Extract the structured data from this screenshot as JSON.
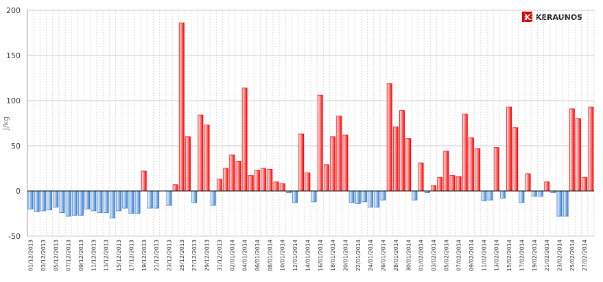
{
  "chart_data": {
    "type": "bar",
    "y_label": "J/kg",
    "logo": "KERAUNOS",
    "categories": [
      "01/12/2013",
      null,
      "03/12/2013",
      null,
      "05/12/2013",
      null,
      "07/12/2013",
      null,
      "09/12/2013",
      null,
      "11/12/2013",
      null,
      "13/12/2013",
      null,
      "15/12/2013",
      null,
      "17/12/2013",
      null,
      "19/12/2013",
      null,
      "21/12/2013",
      null,
      "23/12/2013",
      null,
      "25/12/2013",
      null,
      "27/12/2013",
      null,
      "29/12/2013",
      null,
      "31/12/2013",
      null,
      "02/01/2014",
      null,
      "04/01/2014",
      null,
      "06/01/2014",
      null,
      "08/01/2014",
      null,
      "10/01/2014",
      null,
      "12/01/2014",
      null,
      "14/01/2014",
      null,
      "16/01/2014",
      null,
      "18/01/2014",
      null,
      "20/01/2014",
      null,
      "22/01/2014",
      null,
      "24/01/2014",
      null,
      "26/01/2014",
      null,
      "28/01/2014",
      null,
      "30/01/2014",
      null,
      "01/02/2014",
      null,
      "03/02/2014",
      null,
      "05/02/2014",
      null,
      "07/02/2014",
      null,
      "09/02/2014",
      null,
      "11/02/2014",
      null,
      "13/02/2014",
      null,
      "15/02/2014",
      null,
      "17/02/2014",
      null,
      "19/02/2014",
      null,
      "21/02/2014",
      null,
      "23/02/2014",
      null,
      "25/02/2014",
      null,
      "27/02/2014",
      null
    ],
    "values": [
      -20,
      -23,
      -22,
      -21,
      -18,
      -24,
      -28,
      -27,
      -27,
      -20,
      -22,
      -24,
      -24,
      -30,
      -22,
      -19,
      -25,
      -25,
      22,
      -19,
      -19,
      0,
      -16,
      7,
      186,
      60,
      -13,
      84,
      73,
      -16,
      13,
      25,
      40,
      33,
      114,
      17,
      23,
      25,
      24,
      10,
      8,
      -2,
      -13,
      63,
      20,
      -12,
      106,
      29,
      60,
      83,
      62,
      -13,
      -14,
      -12,
      -18,
      -18,
      -10,
      119,
      71,
      89,
      58,
      -10,
      31,
      -2,
      6,
      15,
      44,
      17,
      16,
      85,
      59,
      47,
      -11,
      -10,
      48,
      -8,
      93,
      70,
      -13,
      19,
      -6,
      -6,
      10,
      -2,
      -28,
      -28,
      91,
      80,
      15,
      93
    ],
    "positive_color": "#ff0000",
    "negative_color": "#3a7fd0",
    "ylim": [
      -50,
      200
    ],
    "yticks": [
      -50,
      0,
      50,
      100,
      150,
      200
    ],
    "grid": true
  }
}
